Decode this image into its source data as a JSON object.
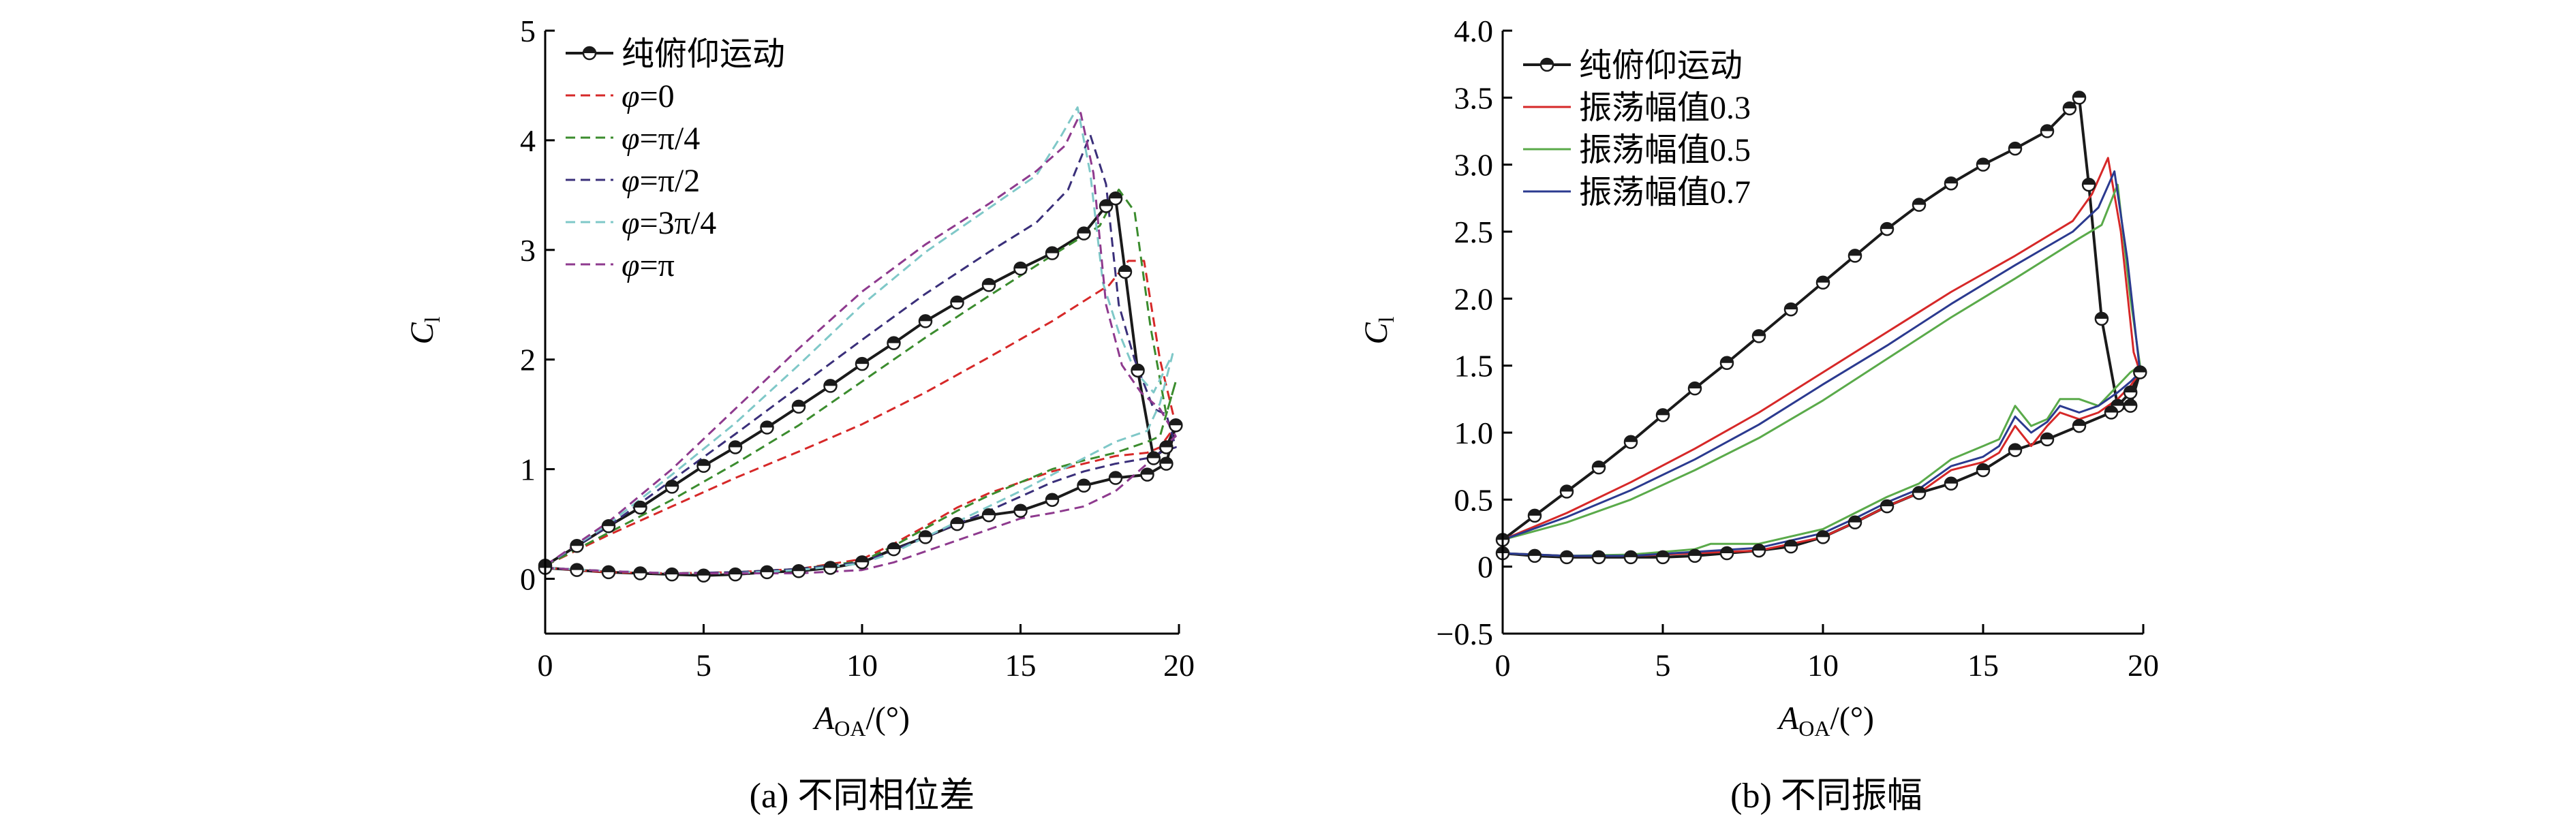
{
  "chart_data": [
    {
      "type": "line",
      "panel_id": "a",
      "caption": "(a) 不同相位差",
      "xlabel_main": "A",
      "xlabel_sub": "OA",
      "xlabel_unit": "/(°)",
      "ylabel_main": "C",
      "ylabel_sub": "l",
      "xlim": [
        0,
        20
      ],
      "ylim": [
        -0.5,
        5
      ],
      "xticks": [
        0,
        5,
        10,
        15,
        20
      ],
      "xtick_labels": [
        "0",
        "5",
        "10",
        "15",
        "20"
      ],
      "yticks": [
        0,
        1,
        2,
        3,
        4,
        5
      ],
      "ytick_labels": [
        "0",
        "1",
        "2",
        "3",
        "4",
        "5"
      ],
      "legend_position": "top-left",
      "series": [
        {
          "name": "纯俯仰运动",
          "color": "#1a1a1a",
          "style": "solid-marker",
          "x": [
            0,
            1,
            2,
            3,
            4,
            5,
            6,
            7,
            8,
            9,
            10,
            11,
            12,
            13,
            14,
            15,
            16,
            17,
            17.7,
            18,
            18.3,
            18.7,
            19.2,
            19.6,
            19.9,
            19.6,
            19,
            18,
            17,
            16,
            15,
            14,
            13,
            12,
            11,
            10,
            9,
            8,
            7,
            6,
            5,
            4,
            3,
            2,
            1,
            0
          ],
          "y": [
            0.12,
            0.3,
            0.48,
            0.65,
            0.84,
            1.03,
            1.2,
            1.38,
            1.57,
            1.76,
            1.96,
            2.15,
            2.35,
            2.52,
            2.68,
            2.83,
            2.97,
            3.15,
            3.4,
            3.47,
            2.8,
            1.9,
            1.1,
            1.2,
            1.4,
            1.05,
            0.95,
            0.92,
            0.85,
            0.72,
            0.62,
            0.58,
            0.5,
            0.38,
            0.27,
            0.15,
            0.1,
            0.07,
            0.06,
            0.04,
            0.03,
            0.04,
            0.05,
            0.06,
            0.08,
            0.1
          ]
        },
        {
          "name": "φ=0",
          "color": "#d62828",
          "style": "dashed",
          "x": [
            0,
            2,
            4,
            6,
            8,
            10,
            12,
            14,
            16,
            17.8,
            18.4,
            18.9,
            19.4,
            19.9,
            19.4,
            19,
            18,
            17,
            16,
            15,
            14,
            13,
            12,
            11,
            10,
            8,
            6,
            4,
            2,
            0
          ],
          "y": [
            0.12,
            0.4,
            0.66,
            0.92,
            1.16,
            1.41,
            1.7,
            2.02,
            2.35,
            2.68,
            2.9,
            2.9,
            2.0,
            1.4,
            1.2,
            1.15,
            1.12,
            1.05,
            0.98,
            0.88,
            0.78,
            0.65,
            0.48,
            0.32,
            0.18,
            0.09,
            0.06,
            0.05,
            0.06,
            0.1
          ]
        },
        {
          "name": "φ=π/4",
          "color": "#3b8c2e",
          "style": "dashed",
          "x": [
            0,
            2,
            4,
            6,
            8,
            10,
            12,
            14,
            16,
            17.5,
            18.1,
            18.6,
            19.1,
            19.6,
            19.9,
            19.4,
            19,
            18,
            17,
            16,
            15,
            14,
            13,
            12,
            11,
            10,
            8,
            6,
            4,
            2,
            0
          ],
          "y": [
            0.12,
            0.42,
            0.72,
            1.05,
            1.4,
            1.8,
            2.2,
            2.58,
            2.95,
            3.22,
            3.55,
            3.35,
            2.3,
            1.5,
            1.8,
            1.3,
            1.25,
            1.15,
            1.08,
            1.0,
            0.88,
            0.76,
            0.62,
            0.46,
            0.3,
            0.16,
            0.09,
            0.06,
            0.05,
            0.07,
            0.1
          ]
        },
        {
          "name": "φ=π/2",
          "color": "#3a2f7a",
          "style": "dashed",
          "x": [
            0,
            2,
            4,
            6,
            8,
            10,
            12,
            14,
            15.5,
            16.5,
            17.2,
            17.7,
            18.1,
            18.6,
            19.2,
            19.6,
            19.9,
            19.4,
            19,
            18,
            17,
            16,
            15,
            14,
            13,
            12,
            11,
            10,
            8,
            6,
            4,
            2,
            0
          ],
          "y": [
            0.12,
            0.48,
            0.9,
            1.32,
            1.75,
            2.18,
            2.6,
            2.98,
            3.25,
            3.55,
            4.05,
            3.6,
            2.5,
            2.0,
            1.55,
            1.5,
            1.2,
            1.15,
            1.1,
            1.05,
            0.98,
            0.88,
            0.75,
            0.62,
            0.5,
            0.38,
            0.26,
            0.15,
            0.09,
            0.06,
            0.05,
            0.07,
            0.1
          ]
        },
        {
          "name": "φ=3π/4",
          "color": "#7fc8c8",
          "style": "dashed",
          "x": [
            0,
            2,
            4,
            6,
            8,
            10,
            12,
            14,
            15.5,
            16.3,
            16.8,
            17.2,
            17.6,
            18.1,
            18.6,
            19.2,
            19.8,
            19.4,
            19,
            18,
            17,
            16,
            15,
            14,
            13,
            12,
            11,
            10,
            8,
            6,
            4,
            2,
            0
          ],
          "y": [
            0.12,
            0.5,
            0.95,
            1.42,
            1.95,
            2.5,
            2.98,
            3.38,
            3.68,
            4.05,
            4.3,
            3.7,
            2.7,
            2.25,
            1.9,
            1.7,
            2.05,
            1.6,
            1.35,
            1.25,
            1.1,
            0.95,
            0.8,
            0.66,
            0.52,
            0.38,
            0.24,
            0.14,
            0.08,
            0.05,
            0.05,
            0.07,
            0.1
          ]
        },
        {
          "name": "φ=π",
          "color": "#8e3a8e",
          "style": "dashed",
          "x": [
            0,
            2,
            4,
            6,
            8,
            10,
            12,
            14,
            15.5,
            16.4,
            16.9,
            17.3,
            17.7,
            18.2,
            18.8,
            19.4,
            19.9,
            19.4,
            19,
            18,
            17,
            16,
            15,
            14,
            13,
            12,
            11,
            10,
            8,
            6,
            4,
            2,
            0
          ],
          "y": [
            0.12,
            0.52,
            1.0,
            1.55,
            2.1,
            2.62,
            3.05,
            3.42,
            3.72,
            3.95,
            4.25,
            3.7,
            2.5,
            1.95,
            1.7,
            1.55,
            1.3,
            1.18,
            1.05,
            0.8,
            0.66,
            0.6,
            0.55,
            0.45,
            0.35,
            0.25,
            0.15,
            0.08,
            0.05,
            0.05,
            0.05,
            0.07,
            0.1
          ]
        }
      ]
    },
    {
      "type": "line",
      "panel_id": "b",
      "caption": "(b) 不同振幅",
      "xlabel_main": "A",
      "xlabel_sub": "OA",
      "xlabel_unit": "/(°)",
      "ylabel_main": "C",
      "ylabel_sub": "l",
      "xlim": [
        0,
        20
      ],
      "ylim": [
        -0.5,
        4.0
      ],
      "xticks": [
        0,
        5,
        10,
        15,
        20
      ],
      "xtick_labels": [
        "0",
        "5",
        "10",
        "15",
        "20"
      ],
      "yticks": [
        -0.5,
        0,
        0.5,
        1.0,
        1.5,
        2.0,
        2.5,
        3.0,
        3.5,
        4.0
      ],
      "ytick_labels": [
        "−0.5",
        "0",
        "0.5",
        "1.0",
        "1.5",
        "2.0",
        "2.5",
        "3.0",
        "3.5",
        "4.0"
      ],
      "legend_position": "top-left",
      "series": [
        {
          "name": "纯俯仰运动",
          "color": "#1a1a1a",
          "style": "solid-marker",
          "x": [
            0,
            1,
            2,
            3,
            4,
            5,
            6,
            7,
            8,
            9,
            10,
            11,
            12,
            13,
            14,
            15,
            16,
            17,
            17.7,
            18,
            18.3,
            18.7,
            19.2,
            19.6,
            19.9,
            19.6,
            19,
            18,
            17,
            16,
            15,
            14,
            13,
            12,
            11,
            10,
            9,
            8,
            7,
            6,
            5,
            4,
            3,
            2,
            1,
            0
          ],
          "y": [
            0.2,
            0.38,
            0.56,
            0.74,
            0.93,
            1.13,
            1.33,
            1.52,
            1.72,
            1.92,
            2.12,
            2.32,
            2.52,
            2.7,
            2.86,
            3.0,
            3.12,
            3.25,
            3.42,
            3.5,
            2.85,
            1.85,
            1.2,
            1.3,
            1.45,
            1.2,
            1.15,
            1.05,
            0.95,
            0.87,
            0.72,
            0.62,
            0.55,
            0.45,
            0.33,
            0.22,
            0.15,
            0.12,
            0.1,
            0.08,
            0.07,
            0.07,
            0.07,
            0.07,
            0.08,
            0.1
          ]
        },
        {
          "name": "振荡幅值0.3",
          "color": "#d62828",
          "style": "solid",
          "x": [
            0,
            2,
            4,
            6,
            8,
            10,
            12,
            14,
            16,
            17.8,
            18.4,
            18.9,
            19.3,
            19.7,
            19.9,
            19.6,
            19.2,
            18.6,
            18,
            17.4,
            17,
            16.5,
            16,
            15.5,
            15,
            14,
            13,
            12,
            11,
            10,
            8,
            6,
            4,
            2,
            0
          ],
          "y": [
            0.2,
            0.4,
            0.63,
            0.88,
            1.15,
            1.45,
            1.75,
            2.05,
            2.32,
            2.58,
            2.78,
            3.05,
            2.5,
            1.6,
            1.45,
            1.35,
            1.25,
            1.15,
            1.1,
            1.15,
            1.05,
            0.9,
            1.05,
            0.85,
            0.78,
            0.72,
            0.55,
            0.45,
            0.33,
            0.22,
            0.12,
            0.1,
            0.08,
            0.08,
            0.1
          ]
        },
        {
          "name": "振荡幅值0.5",
          "color": "#5aaa4a",
          "style": "solid",
          "x": [
            0,
            2,
            4,
            6,
            8,
            10,
            12,
            14,
            16,
            18,
            18.7,
            19.2,
            19.6,
            19.9,
            19.6,
            19.2,
            18.6,
            18,
            17.4,
            17,
            16.5,
            16,
            15.5,
            15,
            14,
            13,
            12,
            11,
            10,
            8,
            6.5,
            6,
            4,
            2,
            0
          ],
          "y": [
            0.2,
            0.33,
            0.5,
            0.72,
            0.96,
            1.24,
            1.55,
            1.86,
            2.15,
            2.45,
            2.55,
            2.85,
            2.0,
            1.5,
            1.45,
            1.35,
            1.2,
            1.25,
            1.25,
            1.1,
            1.05,
            1.2,
            0.95,
            0.9,
            0.8,
            0.62,
            0.52,
            0.4,
            0.28,
            0.17,
            0.17,
            0.13,
            0.09,
            0.08,
            0.1
          ]
        },
        {
          "name": "振荡幅值0.7",
          "color": "#2b3a8f",
          "style": "solid",
          "x": [
            0,
            2,
            4,
            6,
            8,
            10,
            12,
            14,
            16,
            17.8,
            18.6,
            19.1,
            19.5,
            19.9,
            19.6,
            19.2,
            18.6,
            18,
            17.4,
            17,
            16.5,
            16,
            15.5,
            15,
            14,
            13,
            12,
            11,
            10,
            8,
            6,
            4,
            2,
            0
          ],
          "y": [
            0.2,
            0.37,
            0.57,
            0.8,
            1.06,
            1.36,
            1.65,
            1.96,
            2.25,
            2.5,
            2.68,
            2.95,
            2.3,
            1.45,
            1.38,
            1.3,
            1.2,
            1.15,
            1.2,
            1.08,
            1.0,
            1.12,
            0.9,
            0.82,
            0.75,
            0.58,
            0.48,
            0.36,
            0.25,
            0.14,
            0.11,
            0.08,
            0.08,
            0.1
          ]
        }
      ]
    }
  ]
}
